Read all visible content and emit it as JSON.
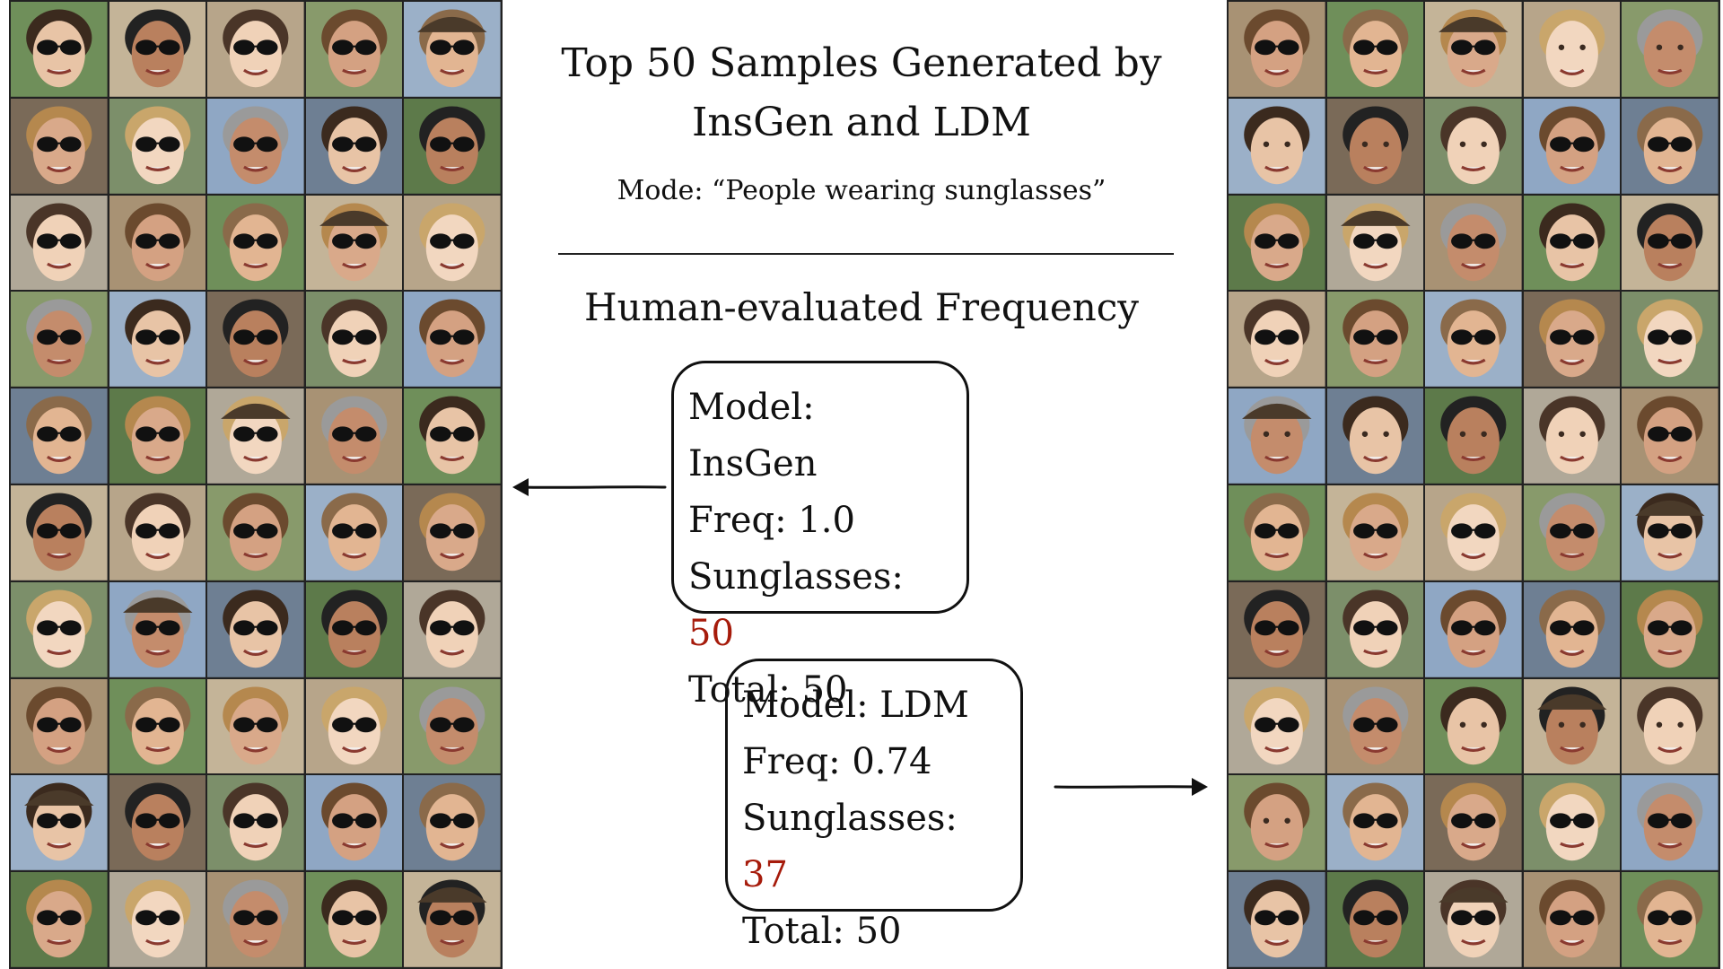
{
  "title_line1": "Top 50 Samples Generated by",
  "title_line2": "InsGen and LDM",
  "mode_text": "Mode: “People wearing sunglasses”",
  "subtitle": "Human-evaluated Frequency",
  "insgen": {
    "model": "Model: InsGen",
    "freq": "Freq: 1.0",
    "sunglasses_label": "Sunglasses: ",
    "sunglasses_value": "50",
    "total": "Total: 50"
  },
  "ldm": {
    "model": "Model: LDM",
    "freq": "Freq: 0.74",
    "sunglasses_label": "Sunglasses: ",
    "sunglasses_value": "37",
    "total": "Total: 50"
  },
  "colors": {
    "highlight": "#a61b0b"
  },
  "left_grid": {
    "count": 50,
    "sunglasses_count": 50
  },
  "right_grid": {
    "count": 50,
    "sunglasses_count": 37
  }
}
